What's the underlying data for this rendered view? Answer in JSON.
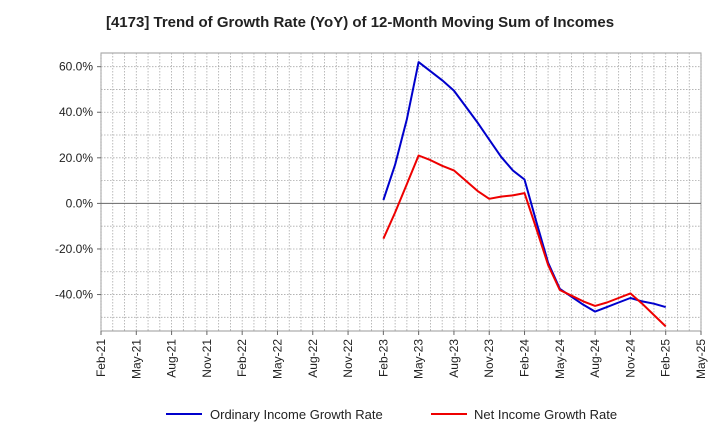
{
  "chart_data": {
    "type": "line",
    "title": "[4173]  Trend of Growth Rate (YoY) of 12-Month Moving Sum of Incomes",
    "xlabel": "",
    "ylabel": "",
    "x_ticks": [
      "Feb-21",
      "May-21",
      "Aug-21",
      "Nov-21",
      "Feb-22",
      "May-22",
      "Aug-22",
      "Nov-22",
      "Feb-23",
      "May-23",
      "Aug-23",
      "Nov-23",
      "Feb-24",
      "May-24",
      "Aug-24",
      "Nov-24",
      "Feb-25",
      "May-25"
    ],
    "y_ticks": [
      "60.0%",
      "40.0%",
      "20.0%",
      "0.0%",
      "-20.0%",
      "-40.0%"
    ],
    "y_tick_values": [
      60,
      40,
      20,
      0,
      -20,
      -40
    ],
    "ylim": [
      -56,
      66
    ],
    "xlim": [
      "2021-02",
      "2025-05"
    ],
    "grid": true,
    "legend_position": "bottom",
    "series": [
      {
        "name": "Ordinary Income Growth Rate",
        "color": "#0000cc",
        "points": [
          {
            "x": "2023-02",
            "y": 1.5
          },
          {
            "x": "2023-03",
            "y": 17
          },
          {
            "x": "2023-04",
            "y": 37
          },
          {
            "x": "2023-05",
            "y": 62
          },
          {
            "x": "2023-06",
            "y": 58
          },
          {
            "x": "2023-07",
            "y": 54
          },
          {
            "x": "2023-08",
            "y": 49.5
          },
          {
            "x": "2023-09",
            "y": 42.5
          },
          {
            "x": "2023-10",
            "y": 35.5
          },
          {
            "x": "2023-11",
            "y": 28
          },
          {
            "x": "2023-12",
            "y": 20.5
          },
          {
            "x": "2024-01",
            "y": 14.5
          },
          {
            "x": "2024-02",
            "y": 10.5
          },
          {
            "x": "2024-03",
            "y": -8
          },
          {
            "x": "2024-04",
            "y": -26
          },
          {
            "x": "2024-05",
            "y": -37.5
          },
          {
            "x": "2024-06",
            "y": -41
          },
          {
            "x": "2024-07",
            "y": -44.5
          },
          {
            "x": "2024-08",
            "y": -47.5
          },
          {
            "x": "2024-09",
            "y": -45.5
          },
          {
            "x": "2024-10",
            "y": -43.5
          },
          {
            "x": "2024-11",
            "y": -41.5
          },
          {
            "x": "2024-12",
            "y": -43
          },
          {
            "x": "2025-01",
            "y": -44
          },
          {
            "x": "2025-02",
            "y": -45.5
          }
        ]
      },
      {
        "name": "Net Income Growth Rate",
        "color": "#ee0000",
        "points": [
          {
            "x": "2023-02",
            "y": -15.5
          },
          {
            "x": "2023-03",
            "y": -4
          },
          {
            "x": "2023-04",
            "y": 8.5
          },
          {
            "x": "2023-05",
            "y": 21
          },
          {
            "x": "2023-06",
            "y": 19
          },
          {
            "x": "2023-07",
            "y": 16.5
          },
          {
            "x": "2023-08",
            "y": 14.5
          },
          {
            "x": "2023-09",
            "y": 10
          },
          {
            "x": "2023-10",
            "y": 5.5
          },
          {
            "x": "2023-11",
            "y": 2
          },
          {
            "x": "2023-12",
            "y": 3
          },
          {
            "x": "2024-01",
            "y": 3.5
          },
          {
            "x": "2024-02",
            "y": 4.5
          },
          {
            "x": "2024-03",
            "y": -11
          },
          {
            "x": "2024-04",
            "y": -27
          },
          {
            "x": "2024-05",
            "y": -38
          },
          {
            "x": "2024-06",
            "y": -40.5
          },
          {
            "x": "2024-07",
            "y": -43
          },
          {
            "x": "2024-08",
            "y": -45
          },
          {
            "x": "2024-09",
            "y": -43.5
          },
          {
            "x": "2024-10",
            "y": -41.5
          },
          {
            "x": "2024-11",
            "y": -39.5
          },
          {
            "x": "2024-12",
            "y": -44
          },
          {
            "x": "2025-01",
            "y": -49
          },
          {
            "x": "2025-02",
            "y": -54
          }
        ]
      }
    ]
  }
}
